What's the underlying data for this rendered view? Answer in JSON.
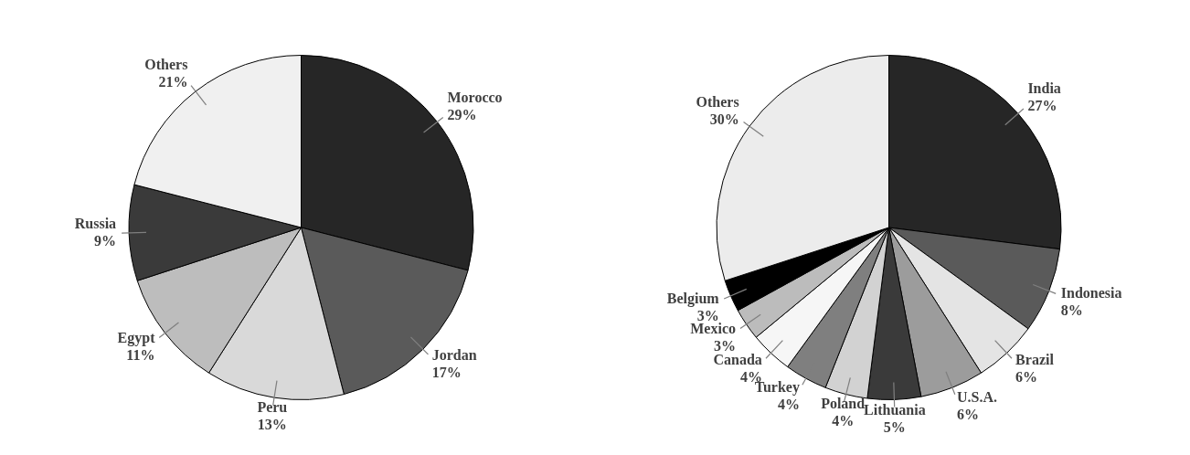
{
  "chart_data": [
    {
      "type": "pie",
      "categories": [
        "Morocco",
        "Jordan",
        "Peru",
        "Egypt",
        "Russia",
        "Others"
      ],
      "values": [
        29,
        17,
        13,
        11,
        9,
        21
      ],
      "colors": [
        "#262626",
        "#5a5a5a",
        "#d9d9d9",
        "#bdbdbd",
        "#3a3a3a",
        "#f0f0f0"
      ],
      "value_labels": [
        "29%",
        "17%",
        "13%",
        "11%",
        "9%",
        "21%"
      ]
    },
    {
      "type": "pie",
      "categories": [
        "India",
        "Indonesia",
        "Brazil",
        "U.S.A.",
        "Lithuania",
        "Poland",
        "Turkey",
        "Canada",
        "Mexico",
        "Belgium",
        "Others"
      ],
      "values": [
        27,
        8,
        6,
        6,
        5,
        4,
        4,
        4,
        3,
        3,
        30
      ],
      "colors": [
        "#262626",
        "#5a5a5a",
        "#e4e4e4",
        "#9c9c9c",
        "#3a3a3a",
        "#d2d2d2",
        "#7f7f7f",
        "#f6f6f6",
        "#bcbcbc",
        "#000000",
        "#ececec"
      ],
      "value_labels": [
        "27%",
        "8%",
        "6%",
        "6%",
        "5%",
        "4%",
        "4%",
        "4%",
        "3%",
        "3%",
        "30%"
      ]
    }
  ]
}
